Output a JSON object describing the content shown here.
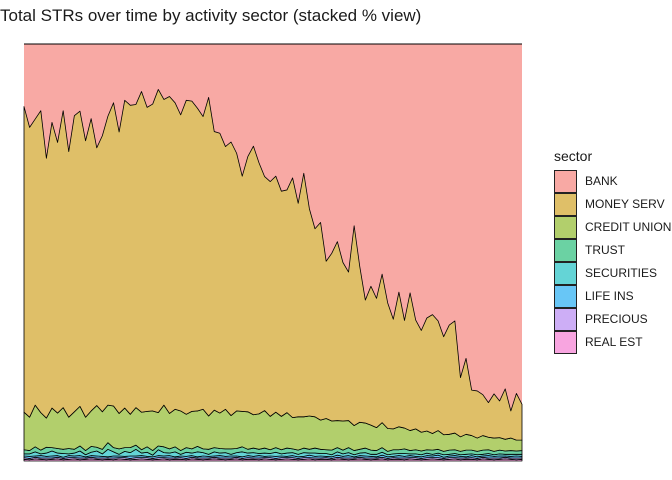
{
  "title": "Total STRs over time by activity sector (stacked % view)",
  "legend": {
    "title": "sector",
    "items": [
      {
        "label": "BANK",
        "color": "#f8a9a4"
      },
      {
        "label": "MONEY SERV",
        "color": "#dfbf68"
      },
      {
        "label": "CREDIT UNION",
        "color": "#b2cf6c"
      },
      {
        "label": "TRUST",
        "color": "#6bd2a3"
      },
      {
        "label": "SECURITIES",
        "color": "#64d4d6"
      },
      {
        "label": "LIFE INS",
        "color": "#68c6f6"
      },
      {
        "label": "PRECIOUS",
        "color": "#cdaef6"
      },
      {
        "label": "REAL EST",
        "color": "#f8a5e0"
      }
    ]
  },
  "chart_data": {
    "type": "area",
    "stacked": true,
    "normalized": true,
    "title": "Total STRs over time by activity sector (stacked % view)",
    "xlabel": "",
    "ylabel": "",
    "ylim": [
      0,
      1
    ],
    "grid": false,
    "legend_position": "right",
    "legend_title": "sector",
    "series": [
      {
        "name": "REAL EST",
        "values": [
          0.004,
          0.003,
          0.005,
          0.004,
          0.003,
          0.004,
          0.005,
          0.003,
          0.004,
          0.005,
          0.003,
          0.004,
          0.005,
          0.004,
          0.003,
          0.004,
          0.003,
          0.005,
          0.004,
          0.003,
          0.004,
          0.005,
          0.004,
          0.003,
          0.004,
          0.005,
          0.003,
          0.004,
          0.004,
          0.003,
          0.005,
          0.004,
          0.003,
          0.004,
          0.005,
          0.004,
          0.003,
          0.004,
          0.005,
          0.003,
          0.004,
          0.004,
          0.003,
          0.005,
          0.004,
          0.003,
          0.004,
          0.005,
          0.004,
          0.003,
          0.004,
          0.005,
          0.003,
          0.004,
          0.004,
          0.003,
          0.005,
          0.004,
          0.003,
          0.004,
          0.005,
          0.004,
          0.003,
          0.004,
          0.005,
          0.003,
          0.004,
          0.004,
          0.003,
          0.005,
          0.004,
          0.003,
          0.004,
          0.005,
          0.004,
          0.003,
          0.004,
          0.005,
          0.003,
          0.004,
          0.004,
          0.003,
          0.005,
          0.004,
          0.003,
          0.004,
          0.005,
          0.004,
          0.003,
          0.004
        ]
      },
      {
        "name": "PRECIOUS",
        "values": [
          0.004,
          0.003,
          0.004,
          0.003,
          0.004,
          0.003,
          0.004,
          0.003,
          0.004,
          0.003,
          0.004,
          0.003,
          0.004,
          0.003,
          0.004,
          0.003,
          0.004,
          0.003,
          0.004,
          0.003,
          0.004,
          0.003,
          0.004,
          0.003,
          0.004,
          0.003,
          0.004,
          0.003,
          0.004,
          0.003,
          0.004,
          0.003,
          0.004,
          0.003,
          0.004,
          0.003,
          0.004,
          0.003,
          0.004,
          0.003,
          0.004,
          0.003,
          0.004,
          0.003,
          0.004,
          0.003,
          0.004,
          0.003,
          0.004,
          0.003,
          0.004,
          0.003,
          0.004,
          0.003,
          0.004,
          0.003,
          0.004,
          0.003,
          0.004,
          0.003,
          0.004,
          0.003,
          0.004,
          0.003,
          0.004,
          0.003,
          0.004,
          0.003,
          0.004,
          0.003,
          0.004,
          0.003,
          0.004,
          0.003,
          0.004,
          0.003,
          0.004,
          0.003,
          0.004,
          0.003,
          0.004,
          0.003,
          0.004,
          0.003,
          0.004,
          0.003,
          0.004,
          0.003,
          0.004,
          0.003
        ]
      },
      {
        "name": "LIFE INS",
        "values": [
          0.004,
          0.005,
          0.003,
          0.006,
          0.004,
          0.005,
          0.004,
          0.003,
          0.005,
          0.004,
          0.006,
          0.003,
          0.004,
          0.005,
          0.004,
          0.003,
          0.005,
          0.004,
          0.003,
          0.006,
          0.004,
          0.005,
          0.003,
          0.004,
          0.005,
          0.004,
          0.006,
          0.003,
          0.004,
          0.005,
          0.004,
          0.003,
          0.005,
          0.004,
          0.003,
          0.006,
          0.004,
          0.005,
          0.003,
          0.004,
          0.005,
          0.004,
          0.006,
          0.003,
          0.004,
          0.005,
          0.004,
          0.003,
          0.005,
          0.004,
          0.003,
          0.006,
          0.004,
          0.005,
          0.003,
          0.004,
          0.005,
          0.004,
          0.006,
          0.003,
          0.004,
          0.005,
          0.004,
          0.003,
          0.005,
          0.004,
          0.003,
          0.006,
          0.004,
          0.005,
          0.003,
          0.004,
          0.005,
          0.004,
          0.006,
          0.003,
          0.004,
          0.005,
          0.004,
          0.003,
          0.005,
          0.004,
          0.003,
          0.006,
          0.004,
          0.005,
          0.003,
          0.004,
          0.005,
          0.004
        ]
      },
      {
        "name": "SECURITIES",
        "values": [
          0.005,
          0.006,
          0.01,
          0.004,
          0.008,
          0.012,
          0.006,
          0.009,
          0.004,
          0.007,
          0.011,
          0.005,
          0.008,
          0.012,
          0.006,
          0.018,
          0.01,
          0.004,
          0.012,
          0.008,
          0.016,
          0.006,
          0.01,
          0.004,
          0.014,
          0.008,
          0.006,
          0.012,
          0.004,
          0.01,
          0.006,
          0.012,
          0.008,
          0.005,
          0.01,
          0.006,
          0.009,
          0.004,
          0.008,
          0.012,
          0.006,
          0.009,
          0.005,
          0.008,
          0.006,
          0.01,
          0.005,
          0.008,
          0.007,
          0.006,
          0.009,
          0.005,
          0.008,
          0.006,
          0.007,
          0.005,
          0.008,
          0.006,
          0.007,
          0.005,
          0.006,
          0.008,
          0.005,
          0.006,
          0.007,
          0.005,
          0.006,
          0.005,
          0.007,
          0.004,
          0.006,
          0.005,
          0.006,
          0.004,
          0.005,
          0.006,
          0.004,
          0.005,
          0.004,
          0.006,
          0.004,
          0.005,
          0.004,
          0.005,
          0.004,
          0.005,
          0.004,
          0.005,
          0.004,
          0.005
        ]
      },
      {
        "name": "TRUST",
        "values": [
          0.01,
          0.008,
          0.012,
          0.009,
          0.014,
          0.008,
          0.011,
          0.01,
          0.013,
          0.009,
          0.012,
          0.01,
          0.014,
          0.009,
          0.011,
          0.016,
          0.01,
          0.013,
          0.009,
          0.012,
          0.01,
          0.008,
          0.013,
          0.011,
          0.009,
          0.014,
          0.01,
          0.012,
          0.009,
          0.011,
          0.01,
          0.013,
          0.009,
          0.012,
          0.01,
          0.011,
          0.009,
          0.013,
          0.01,
          0.012,
          0.009,
          0.011,
          0.01,
          0.012,
          0.009,
          0.011,
          0.01,
          0.012,
          0.009,
          0.01,
          0.011,
          0.009,
          0.012,
          0.01,
          0.009,
          0.011,
          0.01,
          0.009,
          0.012,
          0.01,
          0.009,
          0.011,
          0.01,
          0.009,
          0.011,
          0.008,
          0.01,
          0.009,
          0.011,
          0.008,
          0.01,
          0.009,
          0.008,
          0.01,
          0.009,
          0.008,
          0.01,
          0.009,
          0.008,
          0.01,
          0.009,
          0.008,
          0.01,
          0.009,
          0.008,
          0.009,
          0.008,
          0.009,
          0.008,
          0.009
        ]
      },
      {
        "name": "CREDIT UNION",
        "values": [
          0.09,
          0.08,
          0.1,
          0.09,
          0.07,
          0.095,
          0.085,
          0.1,
          0.075,
          0.09,
          0.095,
          0.08,
          0.085,
          0.1,
          0.09,
          0.09,
          0.1,
          0.085,
          0.095,
          0.08,
          0.09,
          0.09,
          0.085,
          0.095,
          0.08,
          0.1,
          0.085,
          0.09,
          0.095,
          0.08,
          0.09,
          0.085,
          0.095,
          0.08,
          0.09,
          0.085,
          0.095,
          0.08,
          0.09,
          0.085,
          0.09,
          0.08,
          0.085,
          0.09,
          0.08,
          0.085,
          0.08,
          0.085,
          0.075,
          0.08,
          0.075,
          0.08,
          0.075,
          0.07,
          0.075,
          0.07,
          0.065,
          0.07,
          0.065,
          0.06,
          0.065,
          0.06,
          0.06,
          0.055,
          0.06,
          0.055,
          0.05,
          0.055,
          0.05,
          0.048,
          0.05,
          0.045,
          0.045,
          0.04,
          0.045,
          0.04,
          0.038,
          0.04,
          0.035,
          0.038,
          0.035,
          0.032,
          0.035,
          0.03,
          0.032,
          0.03,
          0.028,
          0.03,
          0.026,
          0.025
        ]
      },
      {
        "name": "MONEY SERV",
        "values": [
          0.733,
          0.695,
          0.686,
          0.724,
          0.623,
          0.685,
          0.649,
          0.712,
          0.637,
          0.71,
          0.708,
          0.663,
          0.701,
          0.618,
          0.662,
          0.693,
          0.727,
          0.675,
          0.738,
          0.741,
          0.727,
          0.769,
          0.729,
          0.736,
          0.775,
          0.733,
          0.76,
          0.735,
          0.71,
          0.753,
          0.744,
          0.726,
          0.702,
          0.764,
          0.668,
          0.671,
          0.63,
          0.656,
          0.618,
          0.564,
          0.612,
          0.644,
          0.602,
          0.561,
          0.563,
          0.566,
          0.54,
          0.534,
          0.575,
          0.512,
          0.584,
          0.497,
          0.451,
          0.474,
          0.377,
          0.402,
          0.429,
          0.38,
          0.356,
          0.479,
          0.374,
          0.295,
          0.333,
          0.31,
          0.356,
          0.301,
          0.263,
          0.323,
          0.258,
          0.33,
          0.261,
          0.244,
          0.271,
          0.285,
          0.263,
          0.235,
          0.262,
          0.269,
          0.142,
          0.182,
          0.109,
          0.113,
          0.098,
          0.083,
          0.106,
          0.088,
          0.121,
          0.065,
          0.112,
          0.086
        ]
      }
    ]
  }
}
